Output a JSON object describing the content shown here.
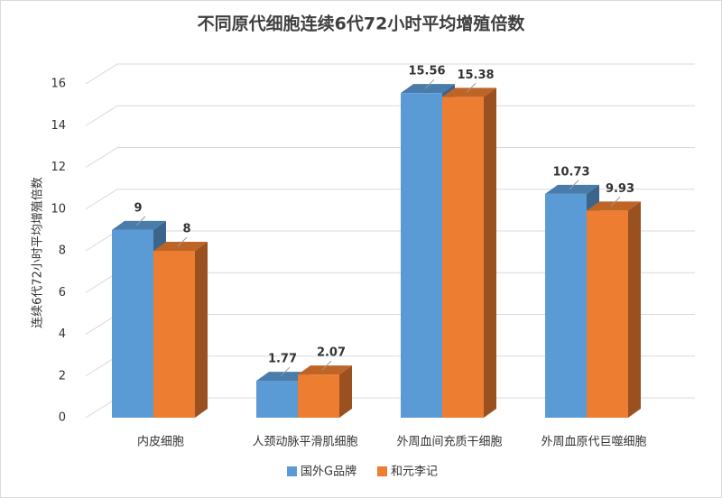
{
  "chart_data": {
    "type": "bar3d",
    "title": "不同原代细胞连续6代72小时平均增殖倍数",
    "y_label": "连续6代72小时平均增殖倍数",
    "categories": [
      "内皮细胞",
      "人颈动脉平滑肌细胞",
      "外周血间充质干细胞",
      "外周血原代巨噬细胞"
    ],
    "series": [
      {
        "name": "国外G品牌",
        "color": "#5b9bd5",
        "values": [
          9,
          1.77,
          15.56,
          10.73
        ]
      },
      {
        "name": "和元李记",
        "color": "#ed7d31",
        "values": [
          8,
          2.07,
          15.38,
          9.93
        ]
      }
    ],
    "ylim": [
      0,
      16
    ],
    "yticks": [
      0,
      2,
      4,
      6,
      8,
      10,
      12,
      14,
      16
    ],
    "grid": true,
    "legend": "bottom"
  }
}
